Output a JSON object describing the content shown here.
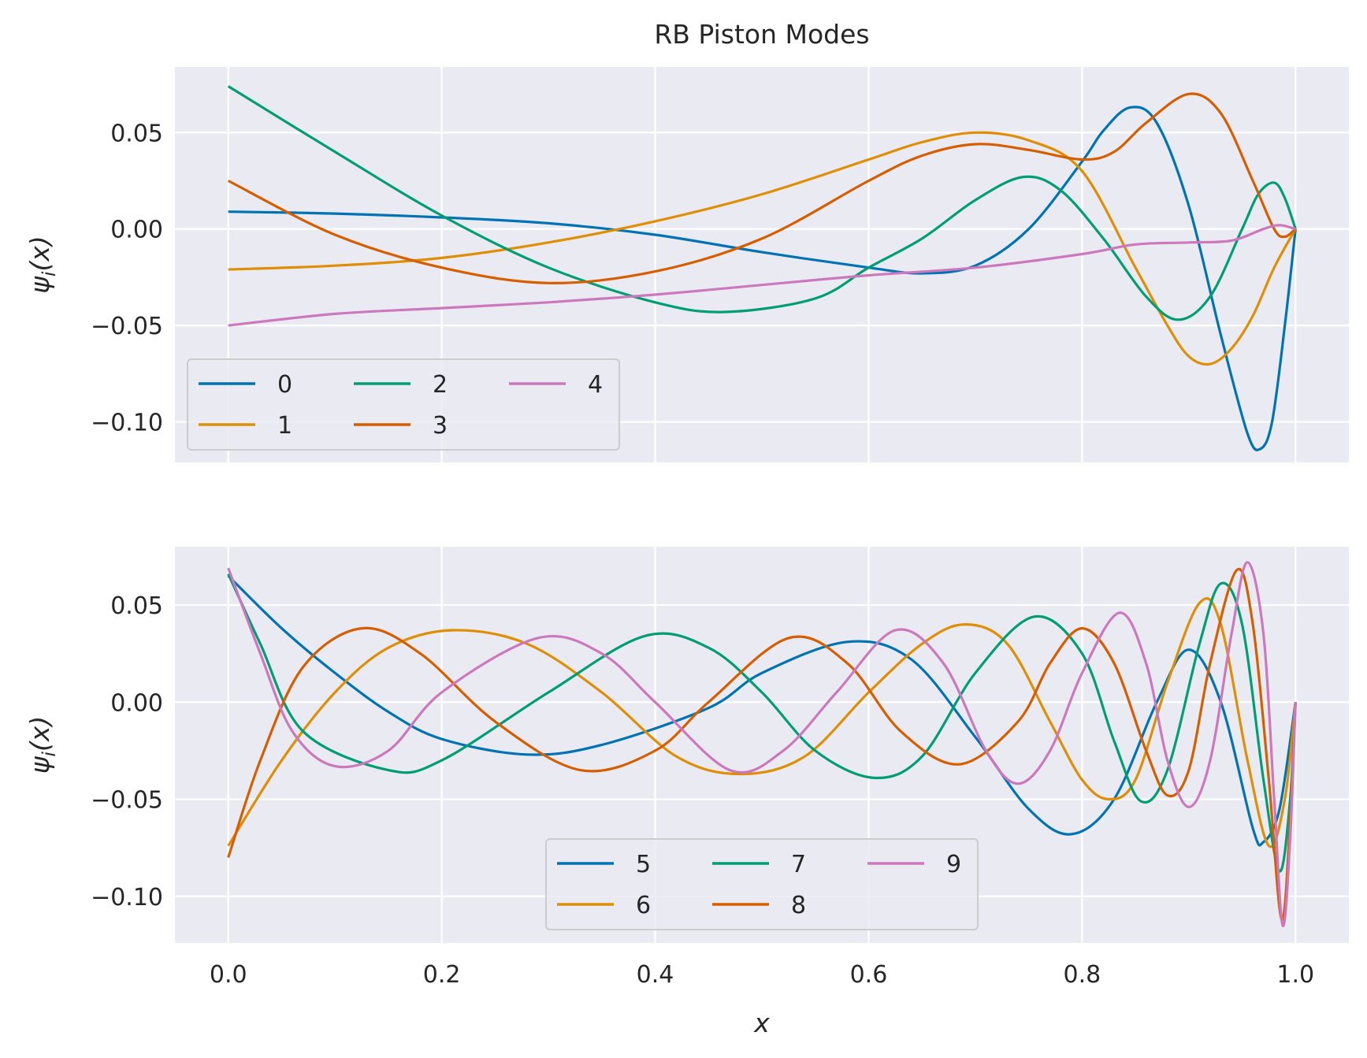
{
  "chart_data": {
    "title": "RB Piston Modes",
    "type": "line",
    "xlabel": "x",
    "ylabel": "ψ_i(x)",
    "xlim": [
      -0.05,
      1.05
    ],
    "x_ticks": [
      0.0,
      0.2,
      0.4,
      0.6,
      0.8,
      1.0
    ],
    "x_tick_labels": [
      "0.0",
      "0.2",
      "0.4",
      "0.6",
      "0.8",
      "1.0"
    ],
    "grid": true,
    "palette": [
      "#0173b2",
      "#de8f05",
      "#029e73",
      "#d55e00",
      "#cc78bc"
    ],
    "panels": [
      {
        "ylim": [
          -0.121,
          0.084
        ],
        "y_ticks": [
          0.05,
          0.0,
          -0.05,
          -0.1
        ],
        "y_tick_labels": [
          "0.05",
          "0.00",
          "−0.05",
          "−0.10"
        ],
        "legend_location": "lower left",
        "series": [
          {
            "name": "0",
            "color": "#0173b2",
            "points": [
              [
                0,
                0.009
              ],
              [
                0.1,
                0.008
              ],
              [
                0.2,
                0.006
              ],
              [
                0.3,
                0.003
              ],
              [
                0.4,
                -0.003
              ],
              [
                0.5,
                -0.012
              ],
              [
                0.6,
                -0.02
              ],
              [
                0.65,
                -0.023
              ],
              [
                0.7,
                -0.019
              ],
              [
                0.75,
                0.0
              ],
              [
                0.8,
                0.035
              ],
              [
                0.82,
                0.051
              ],
              [
                0.845,
                0.063
              ],
              [
                0.87,
                0.055
              ],
              [
                0.9,
                0.012
              ],
              [
                0.93,
                -0.055
              ],
              [
                0.955,
                -0.106
              ],
              [
                0.967,
                -0.114
              ],
              [
                0.978,
                -0.1
              ],
              [
                0.99,
                -0.05
              ],
              [
                1.0,
                0.0
              ]
            ]
          },
          {
            "name": "1",
            "color": "#de8f05",
            "points": [
              [
                0,
                -0.021
              ],
              [
                0.1,
                -0.019
              ],
              [
                0.2,
                -0.015
              ],
              [
                0.3,
                -0.007
              ],
              [
                0.4,
                0.004
              ],
              [
                0.5,
                0.018
              ],
              [
                0.6,
                0.036
              ],
              [
                0.65,
                0.045
              ],
              [
                0.7,
                0.05
              ],
              [
                0.75,
                0.046
              ],
              [
                0.8,
                0.03
              ],
              [
                0.85,
                -0.02
              ],
              [
                0.88,
                -0.05
              ],
              [
                0.9,
                -0.066
              ],
              [
                0.92,
                -0.07
              ],
              [
                0.94,
                -0.062
              ],
              [
                0.96,
                -0.045
              ],
              [
                0.98,
                -0.02
              ],
              [
                1.0,
                0.0
              ]
            ]
          },
          {
            "name": "2",
            "color": "#029e73",
            "points": [
              [
                0,
                0.074
              ],
              [
                0.1,
                0.04
              ],
              [
                0.2,
                0.007
              ],
              [
                0.3,
                -0.02
              ],
              [
                0.4,
                -0.038
              ],
              [
                0.465,
                -0.043
              ],
              [
                0.55,
                -0.036
              ],
              [
                0.6,
                -0.02
              ],
              [
                0.65,
                -0.005
              ],
              [
                0.7,
                0.015
              ],
              [
                0.745,
                0.027
              ],
              [
                0.78,
                0.02
              ],
              [
                0.82,
                -0.005
              ],
              [
                0.86,
                -0.035
              ],
              [
                0.89,
                -0.047
              ],
              [
                0.92,
                -0.035
              ],
              [
                0.95,
                0.0
              ],
              [
                0.965,
                0.018
              ],
              [
                0.98,
                0.024
              ],
              [
                0.99,
                0.016
              ],
              [
                1.0,
                0.0
              ]
            ]
          },
          {
            "name": "3",
            "color": "#d55e00",
            "points": [
              [
                0,
                0.025
              ],
              [
                0.1,
                -0.003
              ],
              [
                0.2,
                -0.02
              ],
              [
                0.3,
                -0.028
              ],
              [
                0.4,
                -0.022
              ],
              [
                0.5,
                -0.005
              ],
              [
                0.6,
                0.025
              ],
              [
                0.65,
                0.038
              ],
              [
                0.7,
                0.044
              ],
              [
                0.75,
                0.041
              ],
              [
                0.8,
                0.036
              ],
              [
                0.83,
                0.04
              ],
              [
                0.86,
                0.055
              ],
              [
                0.9,
                0.07
              ],
              [
                0.93,
                0.06
              ],
              [
                0.96,
                0.025
              ],
              [
                0.98,
                0.0
              ],
              [
                0.99,
                -0.004
              ],
              [
                1.0,
                0.0
              ]
            ]
          },
          {
            "name": "4",
            "color": "#cc78bc",
            "points": [
              [
                0,
                -0.05
              ],
              [
                0.1,
                -0.044
              ],
              [
                0.2,
                -0.041
              ],
              [
                0.3,
                -0.038
              ],
              [
                0.4,
                -0.034
              ],
              [
                0.5,
                -0.029
              ],
              [
                0.6,
                -0.024
              ],
              [
                0.7,
                -0.02
              ],
              [
                0.8,
                -0.013
              ],
              [
                0.85,
                -0.008
              ],
              [
                0.9,
                -0.007
              ],
              [
                0.94,
                -0.006
              ],
              [
                0.97,
                0.0
              ],
              [
                0.985,
                0.002
              ],
              [
                1.0,
                0.0
              ]
            ]
          }
        ]
      },
      {
        "ylim": [
          -0.124,
          0.08
        ],
        "y_ticks": [
          0.05,
          0.0,
          -0.05,
          -0.1
        ],
        "y_tick_labels": [
          "0.05",
          "0.00",
          "−0.05",
          "−0.10"
        ],
        "legend_location": "lower center",
        "series": [
          {
            "name": "5",
            "color": "#0173b2",
            "points": [
              [
                0,
                0.065
              ],
              [
                0.05,
                0.038
              ],
              [
                0.1,
                0.015
              ],
              [
                0.15,
                -0.005
              ],
              [
                0.2,
                -0.019
              ],
              [
                0.28,
                -0.027
              ],
              [
                0.35,
                -0.022
              ],
              [
                0.45,
                -0.003
              ],
              [
                0.5,
                0.015
              ],
              [
                0.58,
                0.031
              ],
              [
                0.64,
                0.022
              ],
              [
                0.7,
                -0.018
              ],
              [
                0.75,
                -0.055
              ],
              [
                0.79,
                -0.068
              ],
              [
                0.83,
                -0.05
              ],
              [
                0.87,
                0.0
              ],
              [
                0.9,
                0.027
              ],
              [
                0.93,
                0.0
              ],
              [
                0.96,
                -0.065
              ],
              [
                0.97,
                -0.072
              ],
              [
                0.985,
                -0.055
              ],
              [
                1.0,
                0.0
              ]
            ]
          },
          {
            "name": "6",
            "color": "#de8f05",
            "points": [
              [
                0,
                -0.074
              ],
              [
                0.05,
                -0.03
              ],
              [
                0.1,
                0.005
              ],
              [
                0.15,
                0.028
              ],
              [
                0.21,
                0.037
              ],
              [
                0.28,
                0.03
              ],
              [
                0.35,
                0.005
              ],
              [
                0.42,
                -0.028
              ],
              [
                0.48,
                -0.037
              ],
              [
                0.54,
                -0.028
              ],
              [
                0.6,
                0.005
              ],
              [
                0.65,
                0.03
              ],
              [
                0.69,
                0.04
              ],
              [
                0.73,
                0.03
              ],
              [
                0.77,
                -0.01
              ],
              [
                0.8,
                -0.04
              ],
              [
                0.825,
                -0.05
              ],
              [
                0.85,
                -0.04
              ],
              [
                0.88,
                0.01
              ],
              [
                0.91,
                0.051
              ],
              [
                0.93,
                0.04
              ],
              [
                0.955,
                -0.03
              ],
              [
                0.975,
                -0.074
              ],
              [
                0.99,
                -0.05
              ],
              [
                1.0,
                0.0
              ]
            ]
          },
          {
            "name": "7",
            "color": "#029e73",
            "points": [
              [
                0,
                0.066
              ],
              [
                0.03,
                0.03
              ],
              [
                0.07,
                -0.015
              ],
              [
                0.15,
                -0.035
              ],
              [
                0.2,
                -0.03
              ],
              [
                0.3,
                0.005
              ],
              [
                0.39,
                0.034
              ],
              [
                0.45,
                0.028
              ],
              [
                0.5,
                0.005
              ],
              [
                0.55,
                -0.025
              ],
              [
                0.605,
                -0.039
              ],
              [
                0.65,
                -0.028
              ],
              [
                0.7,
                0.015
              ],
              [
                0.755,
                0.044
              ],
              [
                0.8,
                0.025
              ],
              [
                0.83,
                -0.02
              ],
              [
                0.855,
                -0.051
              ],
              [
                0.88,
                -0.035
              ],
              [
                0.91,
                0.03
              ],
              [
                0.93,
                0.061
              ],
              [
                0.95,
                0.04
              ],
              [
                0.97,
                -0.04
              ],
              [
                0.985,
                -0.087
              ],
              [
                0.995,
                -0.05
              ],
              [
                1.0,
                0.0
              ]
            ]
          },
          {
            "name": "8",
            "color": "#d55e00",
            "points": [
              [
                0,
                -0.08
              ],
              [
                0.03,
                -0.03
              ],
              [
                0.07,
                0.018
              ],
              [
                0.125,
                0.038
              ],
              [
                0.18,
                0.025
              ],
              [
                0.25,
                -0.01
              ],
              [
                0.33,
                -0.035
              ],
              [
                0.4,
                -0.025
              ],
              [
                0.45,
                0.0
              ],
              [
                0.525,
                0.033
              ],
              [
                0.58,
                0.02
              ],
              [
                0.63,
                -0.015
              ],
              [
                0.685,
                -0.032
              ],
              [
                0.74,
                -0.01
              ],
              [
                0.77,
                0.02
              ],
              [
                0.8,
                0.038
              ],
              [
                0.83,
                0.02
              ],
              [
                0.86,
                -0.025
              ],
              [
                0.88,
                -0.048
              ],
              [
                0.9,
                -0.035
              ],
              [
                0.92,
                0.02
              ],
              [
                0.945,
                0.068
              ],
              [
                0.96,
                0.04
              ],
              [
                0.975,
                -0.04
              ],
              [
                0.987,
                -0.112
              ],
              [
                0.995,
                -0.06
              ],
              [
                1.0,
                0.0
              ]
            ]
          },
          {
            "name": "9",
            "color": "#cc78bc",
            "points": [
              [
                0,
                0.069
              ],
              [
                0.03,
                0.025
              ],
              [
                0.06,
                -0.015
              ],
              [
                0.1,
                -0.033
              ],
              [
                0.15,
                -0.025
              ],
              [
                0.2,
                0.005
              ],
              [
                0.29,
                0.033
              ],
              [
                0.35,
                0.025
              ],
              [
                0.4,
                0.0
              ],
              [
                0.47,
                -0.035
              ],
              [
                0.52,
                -0.025
              ],
              [
                0.57,
                0.005
              ],
              [
                0.625,
                0.037
              ],
              [
                0.67,
                0.02
              ],
              [
                0.71,
                -0.025
              ],
              [
                0.74,
                -0.042
              ],
              [
                0.77,
                -0.025
              ],
              [
                0.8,
                0.015
              ],
              [
                0.835,
                0.046
              ],
              [
                0.86,
                0.02
              ],
              [
                0.88,
                -0.03
              ],
              [
                0.9,
                -0.054
              ],
              [
                0.92,
                -0.03
              ],
              [
                0.94,
                0.035
              ],
              [
                0.955,
                0.072
              ],
              [
                0.97,
                0.035
              ],
              [
                0.98,
                -0.05
              ],
              [
                0.988,
                -0.115
              ],
              [
                0.995,
                -0.07
              ],
              [
                1.0,
                0.0
              ]
            ]
          }
        ]
      }
    ]
  }
}
